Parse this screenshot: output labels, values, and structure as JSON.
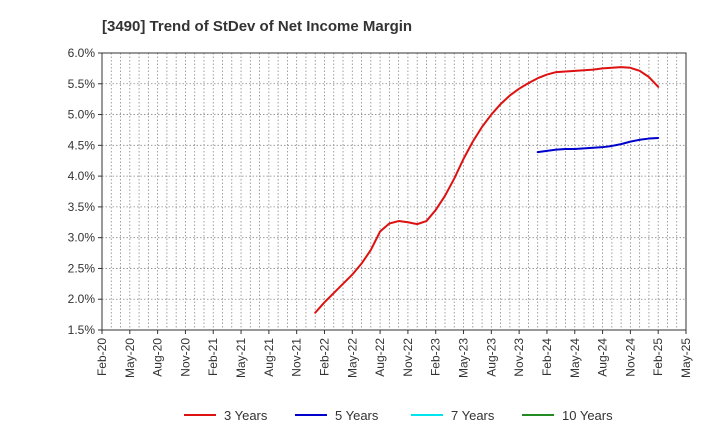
{
  "chart_data": {
    "type": "line",
    "title": "[3490]  Trend of StDev of Net Income Margin",
    "xlabel": "",
    "ylabel": "",
    "ylim": [
      1.5,
      6.0
    ],
    "y_ticks": [
      "1.5%",
      "2.0%",
      "2.5%",
      "3.0%",
      "3.5%",
      "4.0%",
      "4.5%",
      "5.0%",
      "5.5%",
      "6.0%"
    ],
    "x_ticks": [
      "Feb-20",
      "May-20",
      "Aug-20",
      "Nov-20",
      "Feb-21",
      "May-21",
      "Aug-21",
      "Nov-21",
      "Feb-22",
      "May-22",
      "Aug-22",
      "Nov-22",
      "Feb-23",
      "May-23",
      "Aug-23",
      "Nov-23",
      "Feb-24",
      "May-24",
      "Aug-24",
      "Nov-24",
      "Feb-25",
      "May-25"
    ],
    "grid": true,
    "legend_position": "bottom",
    "series": [
      {
        "name": "3 Years",
        "color": "#dd1111",
        "points": [
          [
            "Jan-22",
            1.78
          ],
          [
            "Feb-22",
            1.95
          ],
          [
            "Mar-22",
            2.1
          ],
          [
            "Apr-22",
            2.25
          ],
          [
            "May-22",
            2.4
          ],
          [
            "Jun-22",
            2.58
          ],
          [
            "Jul-22",
            2.8
          ],
          [
            "Aug-22",
            3.1
          ],
          [
            "Sep-22",
            3.23
          ],
          [
            "Oct-22",
            3.27
          ],
          [
            "Nov-22",
            3.25
          ],
          [
            "Dec-22",
            3.22
          ],
          [
            "Jan-23",
            3.27
          ],
          [
            "Feb-23",
            3.45
          ],
          [
            "Mar-23",
            3.68
          ],
          [
            "Apr-23",
            3.96
          ],
          [
            "May-23",
            4.28
          ],
          [
            "Jun-23",
            4.56
          ],
          [
            "Jul-23",
            4.8
          ],
          [
            "Aug-23",
            5.0
          ],
          [
            "Sep-23",
            5.17
          ],
          [
            "Oct-23",
            5.31
          ],
          [
            "Nov-23",
            5.42
          ],
          [
            "Dec-23",
            5.51
          ],
          [
            "Jan-24",
            5.59
          ],
          [
            "Feb-24",
            5.65
          ],
          [
            "Mar-24",
            5.69
          ],
          [
            "Apr-24",
            5.7
          ],
          [
            "May-24",
            5.71
          ],
          [
            "Jun-24",
            5.72
          ],
          [
            "Jul-24",
            5.73
          ],
          [
            "Aug-24",
            5.75
          ],
          [
            "Sep-24",
            5.76
          ],
          [
            "Oct-24",
            5.77
          ],
          [
            "Nov-24",
            5.76
          ],
          [
            "Dec-24",
            5.71
          ],
          [
            "Jan-25",
            5.61
          ],
          [
            "Feb-25",
            5.45
          ]
        ]
      },
      {
        "name": "5 Years",
        "color": "#0000cc",
        "points": [
          [
            "Jan-24",
            4.39
          ],
          [
            "Feb-24",
            4.41
          ],
          [
            "Mar-24",
            4.43
          ],
          [
            "Apr-24",
            4.44
          ],
          [
            "May-24",
            4.44
          ],
          [
            "Jun-24",
            4.45
          ],
          [
            "Jul-24",
            4.46
          ],
          [
            "Aug-24",
            4.47
          ],
          [
            "Sep-24",
            4.49
          ],
          [
            "Oct-24",
            4.52
          ],
          [
            "Nov-24",
            4.56
          ],
          [
            "Dec-24",
            4.59
          ],
          [
            "Jan-25",
            4.61
          ],
          [
            "Feb-25",
            4.62
          ]
        ]
      },
      {
        "name": "7 Years",
        "color": "#00e5ee",
        "points": []
      },
      {
        "name": "10 Years",
        "color": "#228b22",
        "points": []
      }
    ]
  }
}
